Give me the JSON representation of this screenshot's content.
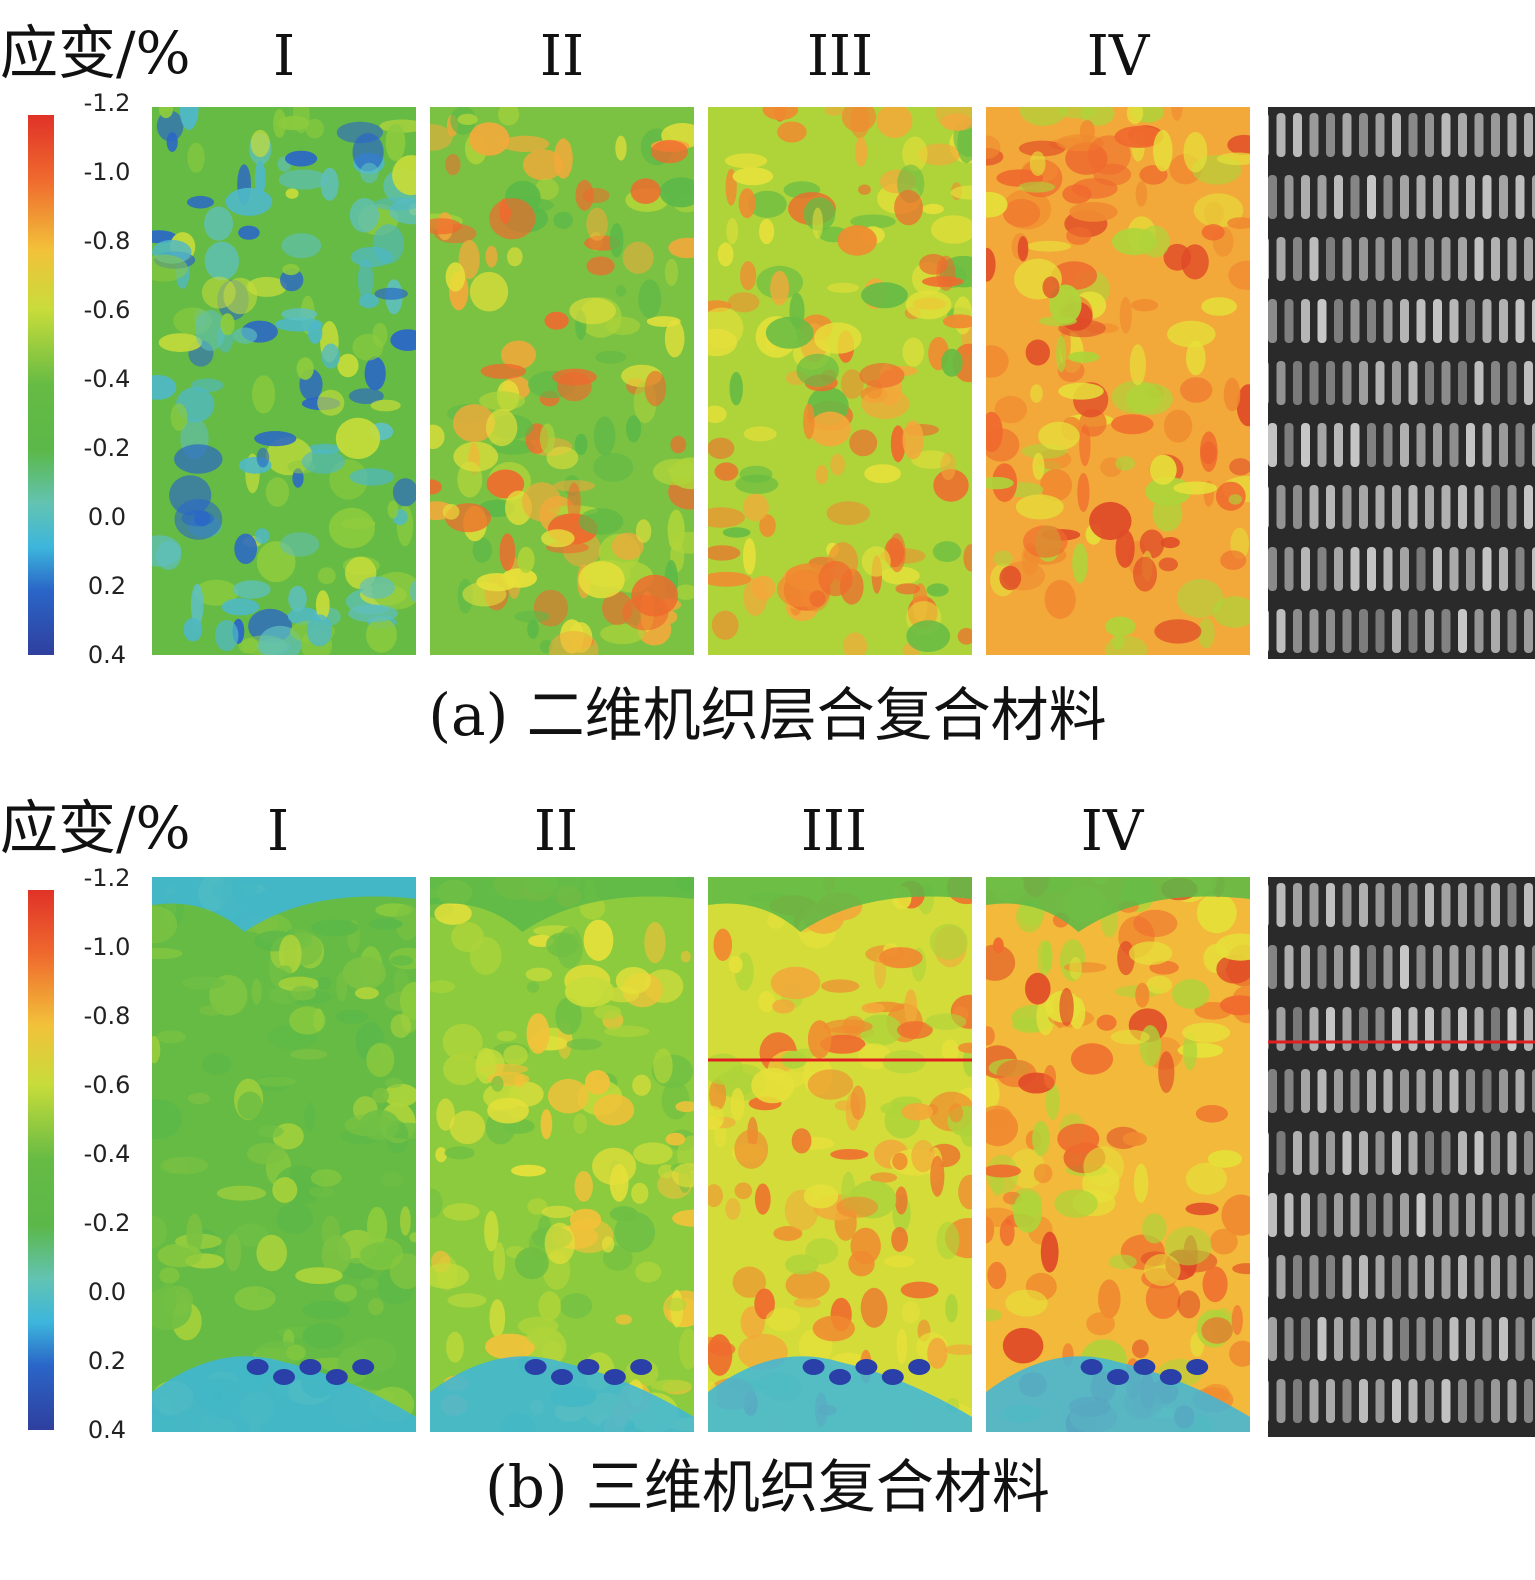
{
  "colors": {
    "scale": [
      "#2f3f9e",
      "#2a66c8",
      "#3db6dc",
      "#62c3b2",
      "#5bb848",
      "#66bb44",
      "#aed43a",
      "#e6e03a",
      "#f2a93a",
      "#ef6a2e",
      "#e03228"
    ],
    "crack_line": "#e02020",
    "photo_bg": "#2a2a2a"
  },
  "legend_ticks": [
    "-1.2",
    "-1.0",
    "-0.8",
    "-0.6",
    "-0.4",
    "-0.2",
    "0.0",
    "0.2",
    "0.4"
  ],
  "figures": [
    {
      "unit_label": "应变/%",
      "stages": [
        "I",
        "II",
        "III",
        "IV"
      ],
      "caption": "(a) 二维机织层合复合材料"
    },
    {
      "unit_label": "应变/%",
      "stages": [
        "I",
        "II",
        "III",
        "IV"
      ],
      "caption": "(b) 三维机织复合材料"
    }
  ]
}
